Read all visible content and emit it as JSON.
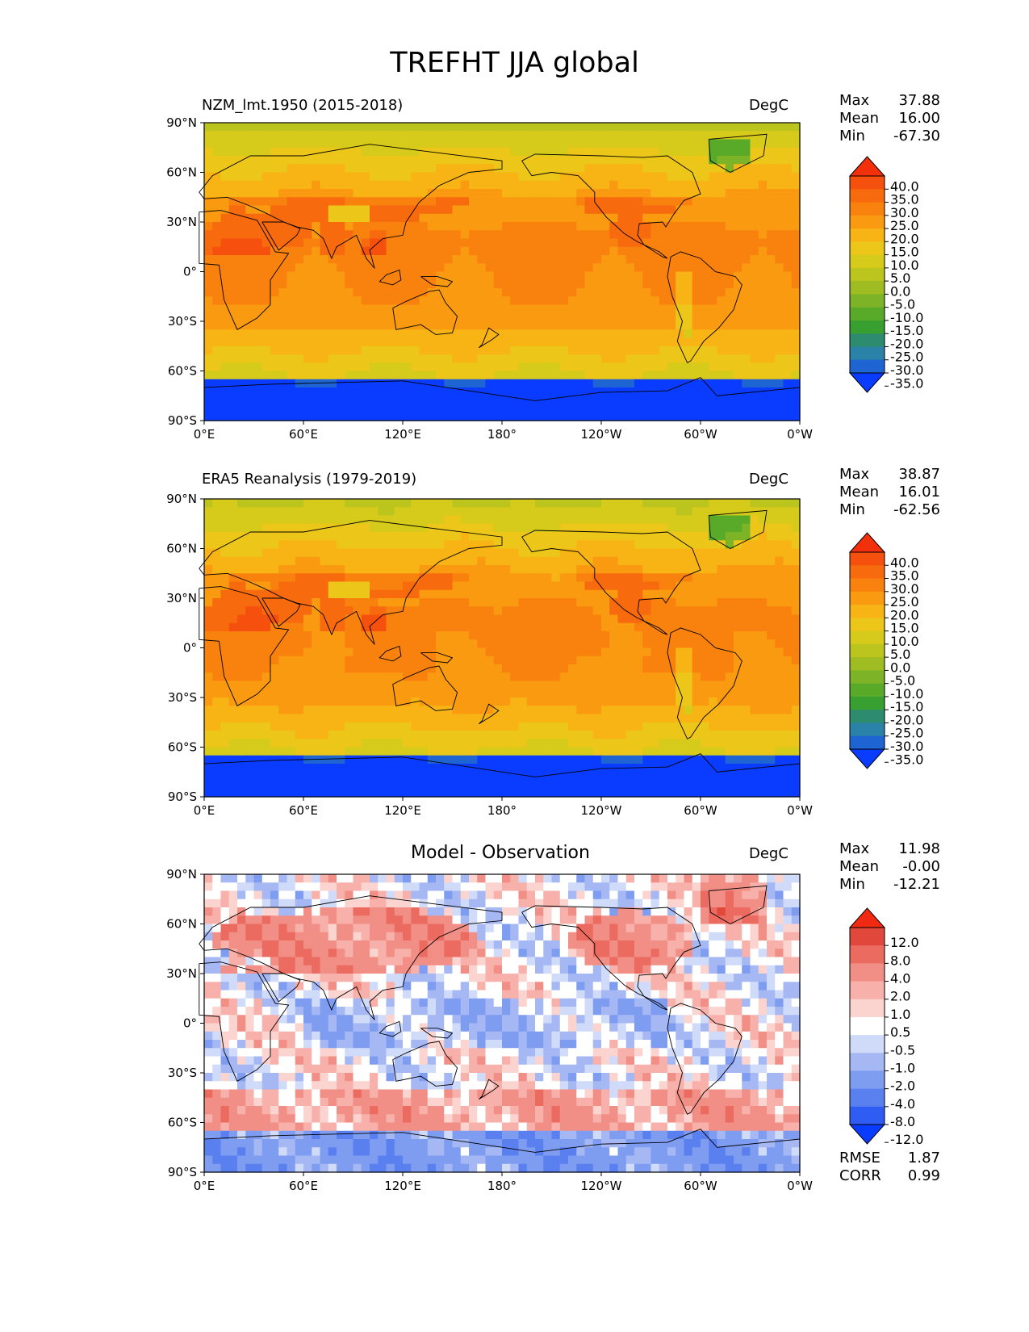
{
  "figure_title": "TREFHT JJA global",
  "colors": {
    "full_field": [
      "#0a3cff",
      "#1e64d2",
      "#2a82a8",
      "#2e8c6e",
      "#38a030",
      "#5aaa2a",
      "#7db427",
      "#9fbc22",
      "#bcc51e",
      "#d6ca1a",
      "#ecc619",
      "#f8b414",
      "#f99a10",
      "#f9820f",
      "#f76a0e",
      "#f5500d",
      "#f2300b"
    ],
    "difference": [
      "#0a3cff",
      "#2f5cf2",
      "#5a80f0",
      "#7e9cf0",
      "#a6b8f4",
      "#d0dbfa",
      "#ffffff",
      "#fbd3cf",
      "#f7b1aa",
      "#f18e85",
      "#eb6b60",
      "#e2473b",
      "#f02a12"
    ],
    "land_outline": "#000000"
  },
  "chart_data": [
    {
      "type": "heatmap",
      "name": "model",
      "left_label": "NZM_lmt.1950 (2015-2018)",
      "units": "DegC",
      "stats": {
        "max_label": "Max",
        "max": "37.88",
        "mean_label": "Mean",
        "mean": "16.00",
        "min_label": "Min",
        "min": "-67.30"
      },
      "x_ticks": [
        "0°E",
        "60°E",
        "120°E",
        "180°",
        "120°W",
        "60°W",
        "0°W"
      ],
      "y_ticks": [
        "90°N",
        "60°N",
        "30°N",
        "0°",
        "30°S",
        "60°S",
        "90°S"
      ],
      "colorbar_levels": [
        "40.0",
        "35.0",
        "30.0",
        "25.0",
        "20.0",
        "15.0",
        "10.0",
        "5.0",
        "0.0",
        "-5.0",
        "-10.0",
        "-15.0",
        "-20.0",
        "-25.0",
        "-30.0",
        "-35.0"
      ],
      "colorbar_extend": "both"
    },
    {
      "type": "heatmap",
      "name": "observation",
      "left_label": "ERA5 Reanalysis (1979-2019)",
      "units": "DegC",
      "stats": {
        "max_label": "Max",
        "max": "38.87",
        "mean_label": "Mean",
        "mean": "16.01",
        "min_label": "Min",
        "min": "-62.56"
      },
      "x_ticks": [
        "0°E",
        "60°E",
        "120°E",
        "180°",
        "120°W",
        "60°W",
        "0°W"
      ],
      "y_ticks": [
        "90°N",
        "60°N",
        "30°N",
        "0°",
        "30°S",
        "60°S",
        "90°S"
      ],
      "colorbar_levels": [
        "40.0",
        "35.0",
        "30.0",
        "25.0",
        "20.0",
        "15.0",
        "10.0",
        "5.0",
        "0.0",
        "-5.0",
        "-10.0",
        "-15.0",
        "-20.0",
        "-25.0",
        "-30.0",
        "-35.0"
      ],
      "colorbar_extend": "both"
    },
    {
      "type": "heatmap",
      "name": "difference",
      "center_title": "Model - Observation",
      "units": "DegC",
      "stats": {
        "max_label": "Max",
        "max": "11.98",
        "mean_label": "Mean",
        "mean": "-0.00",
        "min_label": "Min",
        "min": "-12.21"
      },
      "x_ticks": [
        "0°E",
        "60°E",
        "120°E",
        "180°",
        "120°W",
        "60°W",
        "0°W"
      ],
      "y_ticks": [
        "90°N",
        "60°N",
        "30°N",
        "0°",
        "30°S",
        "60°S",
        "90°S"
      ],
      "colorbar_levels": [
        "12.0",
        "8.0",
        "4.0",
        "2.0",
        "1.0",
        "0.5",
        "-0.5",
        "-1.0",
        "-2.0",
        "-4.0",
        "-8.0",
        "-12.0"
      ],
      "colorbar_extend": "both",
      "skill": {
        "rmse_label": "RMSE",
        "rmse": "1.87",
        "corr_label": "CORR",
        "corr": "0.99"
      }
    }
  ]
}
